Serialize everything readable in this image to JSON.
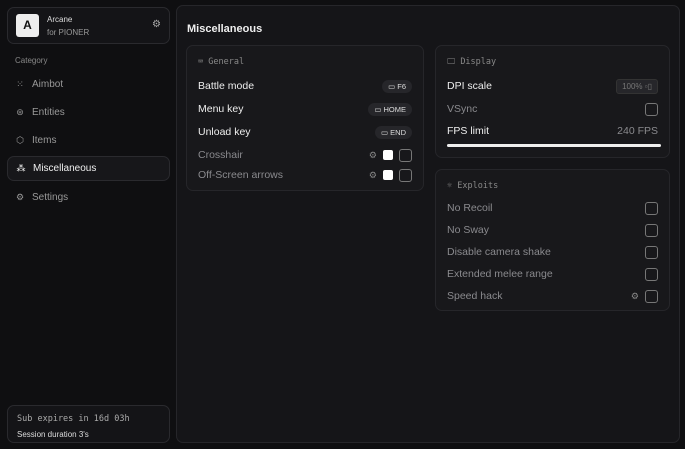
{
  "brand": {
    "logo": "A",
    "name": "Arcane",
    "subtitle": "for PIONER"
  },
  "sidebar": {
    "category_label": "Category",
    "items": [
      {
        "label": "Aimbot",
        "icon": "crosshair-icon"
      },
      {
        "label": "Entities",
        "icon": "entities-icon"
      },
      {
        "label": "Items",
        "icon": "box-icon"
      },
      {
        "label": "Miscellaneous",
        "icon": "misc-icon",
        "active": true
      },
      {
        "label": "Settings",
        "icon": "gear-icon"
      }
    ]
  },
  "footer": {
    "sub": "Sub expires in 16d 03h",
    "session": "Session duration 3's"
  },
  "main": {
    "title": "Miscellaneous"
  },
  "general": {
    "title": "General",
    "rows": [
      {
        "label": "Battle mode",
        "key": "F6"
      },
      {
        "label": "Menu key",
        "key": "HOME"
      },
      {
        "label": "Unload key",
        "key": "END"
      },
      {
        "label": "Crosshair"
      },
      {
        "label": "Off-Screen arrows"
      }
    ]
  },
  "display": {
    "title": "Display",
    "dpi_label": "DPI scale",
    "dpi_value": "100%",
    "vsync_label": "VSync",
    "fps_label": "FPS limit",
    "fps_value": "240 FPS",
    "fps_fraction": 1.0
  },
  "exploits": {
    "title": "Exploits",
    "rows": [
      "No Recoil",
      "No Sway",
      "Disable camera shake",
      "Extended melee range",
      "Speed hack"
    ]
  }
}
